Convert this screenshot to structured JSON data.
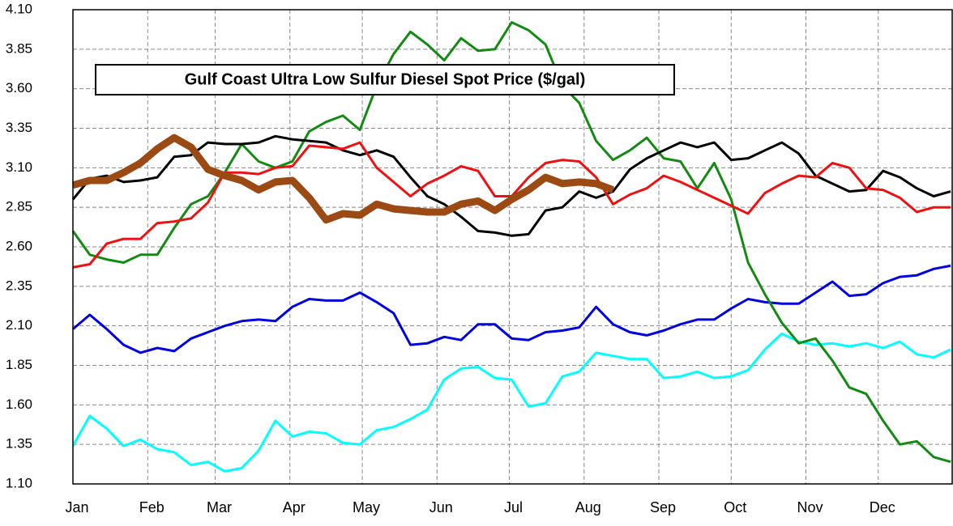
{
  "chart_data": {
    "type": "line",
    "title": "Gulf Coast Ultra Low Sulfur Diesel Spot Price ($/gal)",
    "x": [
      0,
      7,
      14,
      21,
      28,
      35,
      42,
      49,
      56,
      63,
      70,
      77,
      84,
      91,
      98,
      105,
      112,
      119,
      126,
      133,
      140,
      147,
      154,
      161,
      168,
      175,
      182,
      189,
      196,
      203,
      210,
      217,
      224,
      231,
      238,
      245,
      252,
      259,
      266,
      273,
      280,
      287,
      294,
      301,
      308,
      315,
      322,
      329,
      336,
      343,
      350,
      357,
      364
    ],
    "xlim": [
      0,
      365
    ],
    "xticks": [
      {
        "value": 0,
        "label": "Jan"
      },
      {
        "value": 31,
        "label": "Feb"
      },
      {
        "value": 59,
        "label": "Mar"
      },
      {
        "value": 90,
        "label": "Apr"
      },
      {
        "value": 120,
        "label": "May"
      },
      {
        "value": 151,
        "label": "Jun"
      },
      {
        "value": 181,
        "label": "Jul"
      },
      {
        "value": 212,
        "label": "Aug"
      },
      {
        "value": 243,
        "label": "Sep"
      },
      {
        "value": 273,
        "label": "Oct"
      },
      {
        "value": 304,
        "label": "Nov"
      },
      {
        "value": 334,
        "label": "Dec"
      }
    ],
    "ylim": [
      1.1,
      4.1
    ],
    "yticks": [
      {
        "value": 1.1,
        "label": "1.10"
      },
      1.35,
      {
        "value": 1.6,
        "label": "1.60"
      },
      1.85,
      {
        "value": 2.1,
        "label": "2.10"
      },
      2.35,
      {
        "value": 2.6,
        "label": "2.60"
      },
      2.85,
      {
        "value": 3.1,
        "label": "3.10"
      },
      3.35,
      {
        "value": 3.6,
        "label": "3.60"
      },
      3.85,
      {
        "value": 4.1,
        "label": "4.10"
      }
    ],
    "grid": true,
    "series": [
      {
        "color": "#00ffff",
        "width": 3,
        "values": [
          1.34,
          1.53,
          1.45,
          1.34,
          1.38,
          1.32,
          1.3,
          1.22,
          1.24,
          1.18,
          1.2,
          1.31,
          1.5,
          1.4,
          1.43,
          1.42,
          1.36,
          1.35,
          1.44,
          1.46,
          1.51,
          1.57,
          1.76,
          1.83,
          1.84,
          1.77,
          1.76,
          1.59,
          1.61,
          1.78,
          1.81,
          1.93,
          1.91,
          1.89,
          1.89,
          1.77,
          1.78,
          1.81,
          1.77,
          1.78,
          1.82,
          1.95,
          2.05,
          2.0,
          1.98,
          1.99,
          1.97,
          1.99,
          1.96,
          2.0,
          1.92,
          1.9,
          1.95
        ]
      },
      {
        "color": "#0000e0",
        "width": 3,
        "values": [
          2.08,
          2.17,
          2.08,
          1.98,
          1.93,
          1.96,
          1.94,
          2.02,
          2.06,
          2.1,
          2.13,
          2.14,
          2.13,
          2.22,
          2.27,
          2.26,
          2.26,
          2.31,
          2.25,
          2.18,
          1.98,
          1.99,
          2.03,
          2.01,
          2.11,
          2.11,
          2.02,
          2.01,
          2.06,
          2.07,
          2.09,
          2.22,
          2.11,
          2.06,
          2.04,
          2.07,
          2.11,
          2.14,
          2.14,
          2.21,
          2.27,
          2.25,
          2.24,
          2.24,
          2.31,
          2.38,
          2.29,
          2.3,
          2.37,
          2.41,
          2.42,
          2.46,
          2.48
        ]
      },
      {
        "color": "#138a13",
        "width": 3,
        "values": [
          2.7,
          2.55,
          2.52,
          2.5,
          2.55,
          2.55,
          2.72,
          2.87,
          2.92,
          3.07,
          3.25,
          3.14,
          3.1,
          3.14,
          3.33,
          3.39,
          3.43,
          3.34,
          3.62,
          3.82,
          3.96,
          3.88,
          3.78,
          3.92,
          3.84,
          3.85,
          4.02,
          3.97,
          3.88,
          3.62,
          3.51,
          3.27,
          3.15,
          3.21,
          3.29,
          3.16,
          3.14,
          2.97,
          3.13,
          2.9,
          2.5,
          2.3,
          2.12,
          1.99,
          2.02,
          1.88,
          1.71,
          1.67,
          1.5,
          1.35,
          1.37,
          1.27,
          1.24
        ]
      },
      {
        "color": "#000000",
        "width": 3,
        "values": [
          2.9,
          3.03,
          3.05,
          3.01,
          3.02,
          3.04,
          3.17,
          3.18,
          3.26,
          3.25,
          3.25,
          3.26,
          3.3,
          3.28,
          3.27,
          3.26,
          3.21,
          3.18,
          3.21,
          3.17,
          3.04,
          2.92,
          2.87,
          2.79,
          2.7,
          2.69,
          2.67,
          2.68,
          2.83,
          2.85,
          2.95,
          2.91,
          2.95,
          3.09,
          3.16,
          3.21,
          3.26,
          3.23,
          3.26,
          3.15,
          3.16,
          3.21,
          3.26,
          3.19,
          3.05,
          3.0,
          2.95,
          2.96,
          3.08,
          3.04,
          2.97,
          2.92,
          2.95
        ]
      },
      {
        "color": "#ee1111",
        "width": 3,
        "values": [
          2.47,
          2.49,
          2.62,
          2.65,
          2.65,
          2.75,
          2.76,
          2.78,
          2.88,
          3.07,
          3.07,
          3.06,
          3.1,
          3.11,
          3.24,
          3.23,
          3.22,
          3.26,
          3.1,
          3.01,
          2.92,
          3.0,
          3.05,
          3.11,
          3.08,
          2.92,
          2.92,
          3.04,
          3.13,
          3.15,
          3.14,
          3.04,
          2.87,
          2.93,
          2.97,
          3.05,
          3.01,
          2.96,
          2.91,
          2.86,
          2.81,
          2.94,
          3.0,
          3.05,
          3.04,
          3.13,
          3.1,
          2.97,
          2.96,
          2.91,
          2.82,
          2.85,
          2.85
        ]
      },
      {
        "color": "#9c4a14",
        "width": 9,
        "values": [
          2.99,
          3.02,
          3.02,
          3.07,
          3.13,
          3.22,
          3.29,
          3.23,
          3.09,
          3.05,
          3.02,
          2.96,
          3.01,
          3.02,
          2.91,
          2.77,
          2.81,
          2.8,
          2.87,
          2.84,
          2.83,
          2.82,
          2.82,
          2.87,
          2.89,
          2.83,
          2.9,
          2.96,
          3.04,
          3.0,
          3.01,
          3.0,
          2.96,
          null,
          null,
          null,
          null,
          null,
          null,
          null,
          null,
          null,
          null,
          null,
          null,
          null,
          null,
          null,
          null,
          null,
          null,
          null,
          null
        ]
      }
    ]
  }
}
